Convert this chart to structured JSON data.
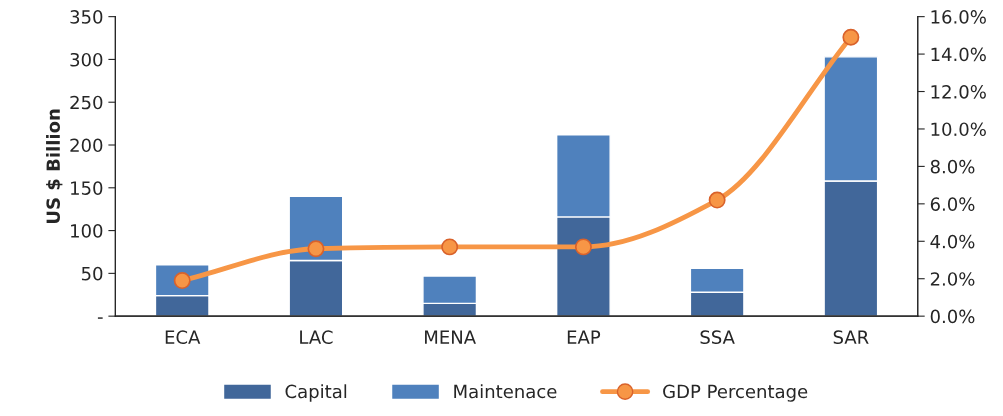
{
  "chart_data": {
    "type": "bar",
    "stacked": true,
    "ylabel": "US $ Billion",
    "categories": [
      "ECA",
      "LAC",
      "MENA",
      "EAP",
      "SSA",
      "SAR"
    ],
    "series": [
      {
        "name": "Capital",
        "color": "#41679a",
        "values": [
          24,
          65,
          15,
          116,
          28,
          158
        ]
      },
      {
        "name": "Maintenace",
        "color": "#4f81bd",
        "values": [
          36,
          75,
          32,
          96,
          28,
          145
        ]
      },
      {
        "name": "GDP Percentage",
        "type": "line",
        "axis": "y2",
        "color": "#f79646",
        "marker": "circle",
        "values": [
          1.9,
          3.6,
          3.7,
          3.7,
          6.2,
          14.9
        ]
      }
    ],
    "ylim": [
      0,
      350
    ],
    "yticks": [
      {
        "value": 0,
        "label": "-"
      },
      50,
      100,
      150,
      200,
      250,
      300,
      350
    ],
    "y2lim": [
      0,
      16
    ],
    "y2ticks": [
      {
        "value": 0,
        "label": "0.0%"
      },
      {
        "value": 2,
        "label": "2.0%"
      },
      {
        "value": 4,
        "label": "4.0%"
      },
      {
        "value": 6,
        "label": "6.0%"
      },
      {
        "value": 8,
        "label": "8.0%"
      },
      {
        "value": 10,
        "label": "10.0%"
      },
      {
        "value": 12,
        "label": "12.0%"
      },
      {
        "value": 14,
        "label": "14.0%"
      },
      {
        "value": 16,
        "label": "16.0%"
      }
    ],
    "legend": "bottom",
    "grid": false
  }
}
